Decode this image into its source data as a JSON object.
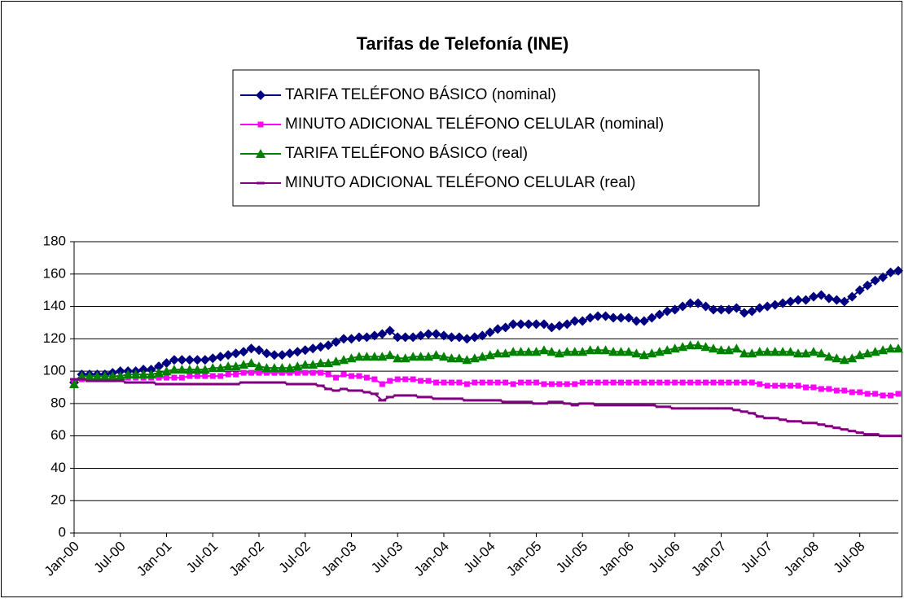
{
  "chart_data": {
    "type": "line",
    "title": "Tarifas de Telefonía (INE)",
    "categories": [
      "Jan-00",
      null,
      null,
      null,
      null,
      null,
      "Jul-00",
      null,
      null,
      null,
      null,
      null,
      "Jan-01",
      null,
      null,
      null,
      null,
      null,
      "Jul-01",
      null,
      null,
      null,
      null,
      null,
      "Jan-02",
      null,
      null,
      null,
      null,
      null,
      "Jul-02",
      null,
      null,
      null,
      null,
      null,
      "Jan-03",
      null,
      null,
      null,
      null,
      null,
      "Jul-03",
      null,
      null,
      null,
      null,
      null,
      "Jan-04",
      null,
      null,
      null,
      null,
      null,
      "Jul-04",
      null,
      null,
      null,
      null,
      null,
      "Jan-05",
      null,
      null,
      null,
      null,
      null,
      "Jul-05",
      null,
      null,
      null,
      null,
      null,
      "Jan-06",
      null,
      null,
      null,
      null,
      null,
      "Jul-06",
      null,
      null,
      null,
      null,
      null,
      "Jan-07",
      null,
      null,
      null,
      null,
      null,
      "Jul-07",
      null,
      null,
      null,
      null,
      null,
      "Jan-08",
      null,
      null,
      null,
      null,
      null,
      "Jul-08",
      null,
      null,
      null,
      null,
      null
    ],
    "series": [
      {
        "name": "TARIFA TELÉFONO BÁSICO (nominal)",
        "color": "#000080",
        "marker": "diamond",
        "values": [
          93,
          98,
          98,
          98,
          98,
          99,
          100,
          100,
          100,
          101,
          101,
          103,
          105,
          107,
          107,
          107,
          107,
          107,
          108,
          109,
          110,
          111,
          112,
          114,
          113,
          111,
          110,
          110,
          111,
          112,
          113,
          114,
          115,
          116,
          118,
          120,
          120,
          121,
          121,
          122,
          123,
          125,
          121,
          121,
          121,
          122,
          123,
          123,
          122,
          121,
          121,
          120,
          121,
          122,
          124,
          126,
          127,
          129,
          129,
          129,
          129,
          129,
          127,
          128,
          129,
          131,
          131,
          133,
          134,
          134,
          133,
          133,
          133,
          131,
          131,
          133,
          135,
          137,
          138,
          140,
          142,
          142,
          140,
          138,
          138,
          138,
          139,
          136,
          137,
          139,
          140,
          141,
          142,
          143,
          144,
          144,
          146,
          147,
          145,
          144,
          143,
          146,
          150,
          153,
          156,
          158,
          161,
          162
        ]
      },
      {
        "name": "MINUTO ADICIONAL TELÉFONO CELULAR (nominal)",
        "color": "#ff00ff",
        "marker": "square",
        "values": [
          94,
          95,
          95,
          95,
          95,
          95,
          96,
          96,
          96,
          96,
          96,
          96,
          96,
          96,
          96,
          97,
          97,
          97,
          97,
          97,
          98,
          98,
          99,
          99,
          99,
          99,
          99,
          99,
          99,
          99,
          99,
          99,
          99,
          98,
          96,
          98,
          97,
          97,
          96,
          95,
          92,
          94,
          95,
          95,
          95,
          94,
          94,
          93,
          93,
          93,
          93,
          92,
          93,
          93,
          93,
          93,
          93,
          92,
          93,
          93,
          93,
          92,
          92,
          92,
          92,
          92,
          93,
          93,
          93,
          93,
          93,
          93,
          93,
          93,
          93,
          93,
          93,
          93,
          93,
          93,
          93,
          93,
          93,
          93,
          93,
          93,
          93,
          93,
          93,
          92,
          91,
          91,
          91,
          91,
          91,
          90,
          90,
          89,
          89,
          88,
          88,
          87,
          87,
          86,
          86,
          85,
          85,
          86
        ]
      },
      {
        "name": "TARIFA TELÉFONO BÁSICO (real)",
        "color": "#008000",
        "marker": "triangle",
        "values": [
          92,
          97,
          97,
          97,
          97,
          97,
          97,
          98,
          98,
          98,
          98,
          99,
          100,
          101,
          101,
          101,
          101,
          101,
          102,
          102,
          103,
          103,
          104,
          105,
          103,
          102,
          102,
          102,
          102,
          103,
          104,
          104,
          105,
          105,
          106,
          107,
          108,
          109,
          109,
          109,
          109,
          110,
          108,
          108,
          109,
          109,
          109,
          110,
          109,
          108,
          108,
          107,
          108,
          109,
          110,
          111,
          111,
          112,
          112,
          112,
          112,
          113,
          112,
          111,
          112,
          112,
          112,
          113,
          113,
          113,
          112,
          112,
          112,
          111,
          110,
          111,
          112,
          113,
          114,
          115,
          116,
          116,
          115,
          114,
          113,
          113,
          114,
          111,
          111,
          112,
          112,
          112,
          112,
          112,
          111,
          111,
          112,
          111,
          109,
          108,
          107,
          108,
          110,
          111,
          112,
          113,
          114,
          114
        ]
      },
      {
        "name": "MINUTO ADICIONAL TELÉFONO CELULAR (real)",
        "color": "#800080",
        "marker": "dash",
        "values": [
          95,
          95,
          94,
          94,
          94,
          94,
          94,
          93,
          93,
          93,
          93,
          92,
          92,
          92,
          92,
          92,
          92,
          92,
          92,
          92,
          92,
          92,
          93,
          93,
          93,
          93,
          93,
          93,
          92,
          92,
          92,
          92,
          91,
          89,
          88,
          89,
          88,
          88,
          87,
          86,
          82,
          84,
          85,
          85,
          85,
          84,
          84,
          83,
          83,
          83,
          83,
          82,
          82,
          82,
          82,
          82,
          81,
          81,
          81,
          81,
          80,
          80,
          81,
          81,
          80,
          79,
          80,
          80,
          79,
          79,
          79,
          79,
          79,
          79,
          79,
          79,
          78,
          78,
          77,
          77,
          77,
          77,
          77,
          77,
          77,
          77,
          76,
          75,
          74,
          72,
          71,
          71,
          70,
          69,
          69,
          68,
          68,
          67,
          66,
          65,
          64,
          63,
          62,
          61,
          61,
          60,
          60,
          60
        ]
      }
    ],
    "ylim": [
      0,
      180
    ],
    "yticks": [
      0,
      20,
      40,
      60,
      80,
      100,
      120,
      140,
      160,
      180
    ],
    "grid": true
  }
}
